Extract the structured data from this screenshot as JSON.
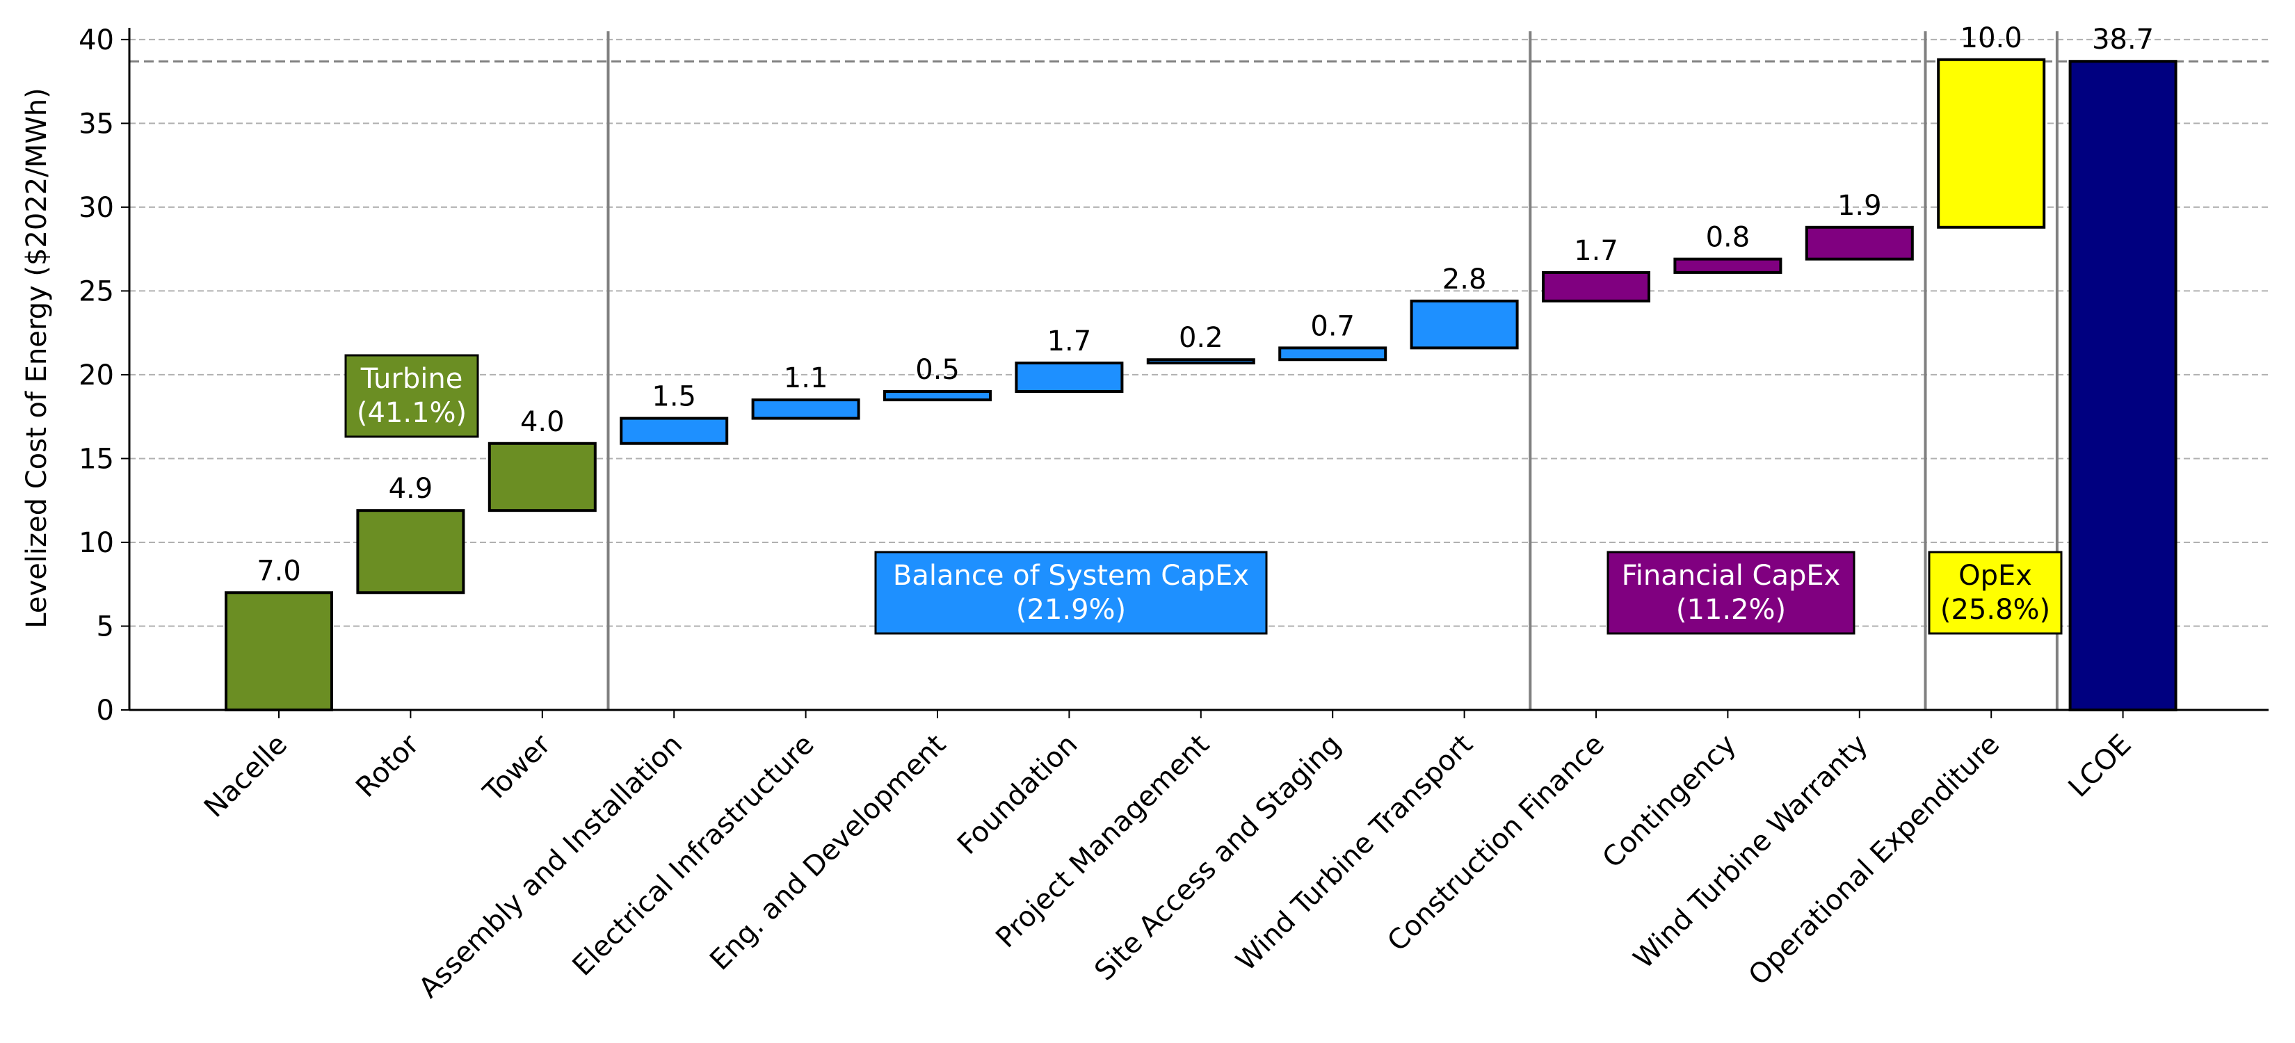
{
  "chart_data": {
    "type": "waterfall",
    "title": "",
    "xlabel": "",
    "ylabel": "Levelized Cost of Energy ($2022/MWh)",
    "ylim": [
      0,
      40.7
    ],
    "yticks": [
      0,
      5,
      10,
      15,
      20,
      25,
      30,
      35,
      40
    ],
    "grid": "horizontal dashed",
    "total_reference_line": 38.7,
    "categories": [
      "Nacelle",
      "Rotor",
      "Tower",
      "Assembly and Installation",
      "Electrical Infrastructure",
      "Eng. and Development",
      "Foundation",
      "Project Management",
      "Site Access and Staging",
      "Wind Turbine Transport",
      "Construction Finance",
      "Contingency",
      "Wind Turbine Warranty",
      "Operational Expenditure",
      "LCOE"
    ],
    "values": [
      7.0,
      4.9,
      4.0,
      1.5,
      1.1,
      0.5,
      1.7,
      0.2,
      0.7,
      2.8,
      1.7,
      0.8,
      1.9,
      10.0,
      38.7
    ],
    "value_labels": [
      "7.0",
      "4.9",
      "4.0",
      "1.5",
      "1.1",
      "0.5",
      "1.7",
      "0.2",
      "0.7",
      "2.8",
      "1.7",
      "0.8",
      "1.9",
      "10.0",
      "38.7"
    ],
    "bar_groups": [
      "turbine",
      "turbine",
      "turbine",
      "bos",
      "bos",
      "bos",
      "bos",
      "bos",
      "bos",
      "bos",
      "fin",
      "fin",
      "fin",
      "opex",
      "total"
    ],
    "groups": [
      {
        "key": "turbine",
        "label_line1": "Turbine",
        "label_line2": "(41.1%)",
        "color": "#6b8e23",
        "text_color": "#ffffff"
      },
      {
        "key": "bos",
        "label_line1": "Balance of System CapEx",
        "label_line2": "(21.9%)",
        "color": "#1e90ff",
        "text_color": "#ffffff"
      },
      {
        "key": "fin",
        "label_line1": "Financial CapEx",
        "label_line2": "(11.2%)",
        "color": "#800080",
        "text_color": "#ffffff"
      },
      {
        "key": "opex",
        "label_line1": "OpEx",
        "label_line2": "(25.8%)",
        "color": "#ffff00",
        "text_color": "#000000"
      },
      {
        "key": "total",
        "label_line1": "",
        "label_line2": "",
        "color": "#000080",
        "text_color": "#ffffff"
      }
    ],
    "group_separators_after_index": [
      2,
      9,
      12,
      13
    ]
  }
}
